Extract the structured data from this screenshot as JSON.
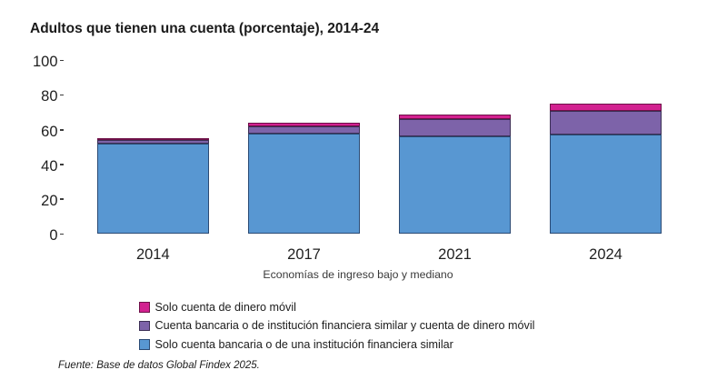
{
  "title": "Adultos que tienen una cuenta (porcentaje), 2014-24",
  "source_note": "Fuente: Base de datos Global Findex 2025.",
  "chart_data": {
    "type": "bar",
    "subtype": "stacked",
    "title": "Adultos que tienen una cuenta (porcentaje), 2014-24",
    "categories": [
      "2014",
      "2017",
      "2021",
      "2024"
    ],
    "series": [
      {
        "name": "Solo cuenta de dinero móvil",
        "values": [
          1,
          2,
          3,
          4
        ],
        "color": "#d22190",
        "border_color": "#6e1048"
      },
      {
        "name": "Cuenta bancaria o de institución financiera similar y cuenta de dinero móvil",
        "values": [
          2,
          4,
          10,
          14
        ],
        "color": "#7d63a9",
        "border_color": "#3c2f55"
      },
      {
        "name": "Solo cuenta bancaria o de una institución financiera similar",
        "values": [
          52,
          58,
          56,
          57
        ],
        "color": "#5897d2",
        "border_color": "#2b4a74"
      }
    ],
    "totals": [
      55,
      64,
      69,
      75
    ],
    "xlabel": "Economías de ingreso bajo y mediano",
    "ylabel": "",
    "ylim": [
      0,
      100
    ],
    "yticks": [
      0,
      20,
      40,
      60,
      80,
      100
    ],
    "grid": false,
    "legend_position": "bottom-left"
  },
  "legend": {
    "items": [
      {
        "label": "Solo cuenta de dinero móvil",
        "color": "#d22190"
      },
      {
        "label": "Cuenta bancaria o de institución financiera similar y cuenta de dinero móvil",
        "color": "#7d63a9"
      },
      {
        "label": "Solo cuenta bancaria o de una institución financiera similar",
        "color": "#5897d2"
      }
    ]
  }
}
